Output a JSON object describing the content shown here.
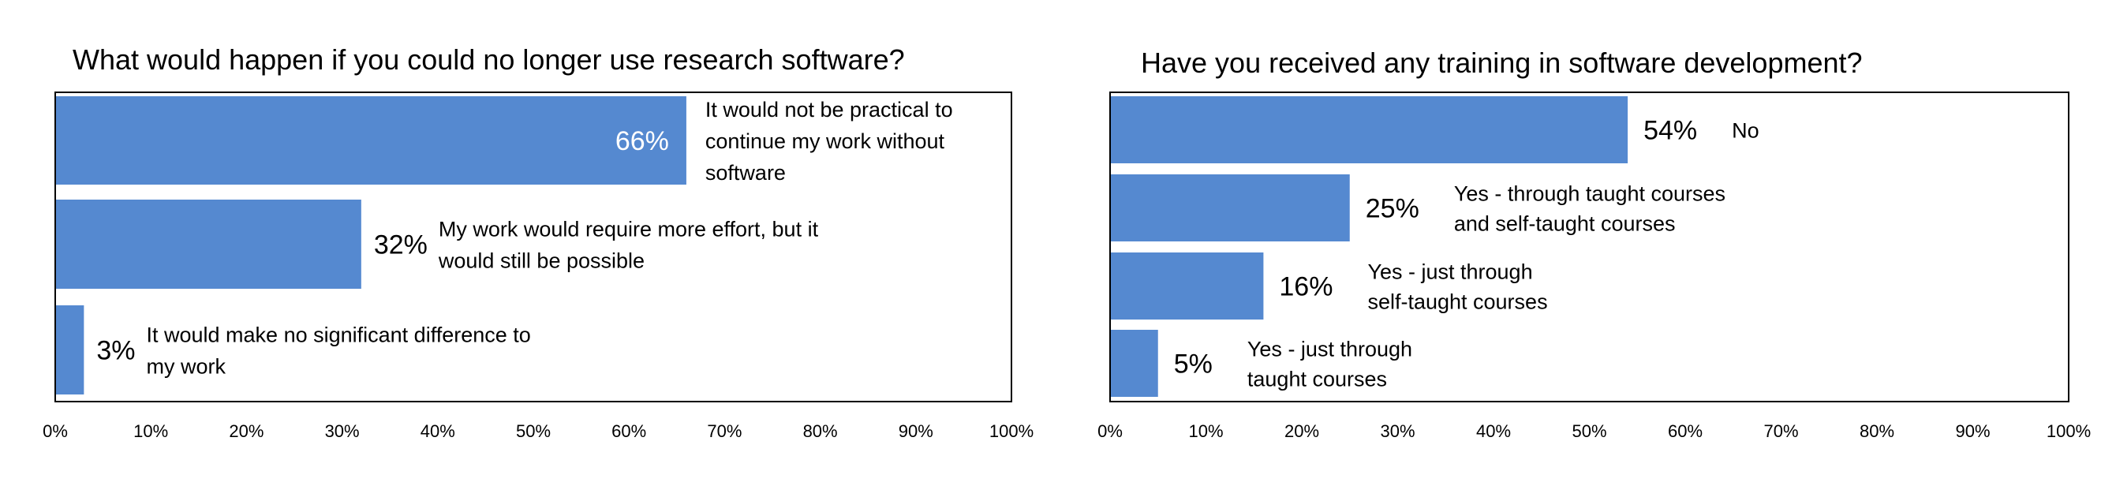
{
  "chart_data": [
    {
      "type": "bar",
      "orientation": "horizontal",
      "title": "What would happen if you could no longer use research software?",
      "xlim": [
        0,
        100
      ],
      "x_ticks": [
        "0%",
        "10%",
        "20%",
        "30%",
        "40%",
        "50%",
        "60%",
        "70%",
        "80%",
        "90%",
        "100%"
      ],
      "grid": false,
      "bar_color": "#5589D0",
      "bars": [
        {
          "value": 66,
          "value_label": "66%",
          "value_label_inside": true,
          "label_lines": [
            "It would not be practical to",
            "continue my work without",
            "software"
          ]
        },
        {
          "value": 32,
          "value_label": "32%",
          "value_label_inside": false,
          "label_lines": [
            "My work would require more effort, but it",
            "would still be possible"
          ]
        },
        {
          "value": 3,
          "value_label": "3%",
          "value_label_inside": false,
          "label_lines": [
            "It would make no significant difference to",
            "my work"
          ]
        }
      ]
    },
    {
      "type": "bar",
      "orientation": "horizontal",
      "title": "Have you received any training in software development?",
      "xlim": [
        0,
        100
      ],
      "x_ticks": [
        "0%",
        "10%",
        "20%",
        "30%",
        "40%",
        "50%",
        "60%",
        "70%",
        "80%",
        "90%",
        "100%"
      ],
      "grid": false,
      "bar_color": "#5589D0",
      "bars": [
        {
          "value": 54,
          "value_label": "54%",
          "value_label_inside": false,
          "label_lines": [
            "No"
          ]
        },
        {
          "value": 25,
          "value_label": "25%",
          "value_label_inside": false,
          "label_lines": [
            "Yes - through taught courses",
            "and self-taught courses"
          ]
        },
        {
          "value": 16,
          "value_label": "16%",
          "value_label_inside": false,
          "label_lines": [
            "Yes - just through",
            "self-taught courses"
          ]
        },
        {
          "value": 5,
          "value_label": "5%",
          "value_label_inside": false,
          "label_lines": [
            "Yes - just through",
            "taught courses"
          ]
        }
      ]
    }
  ]
}
